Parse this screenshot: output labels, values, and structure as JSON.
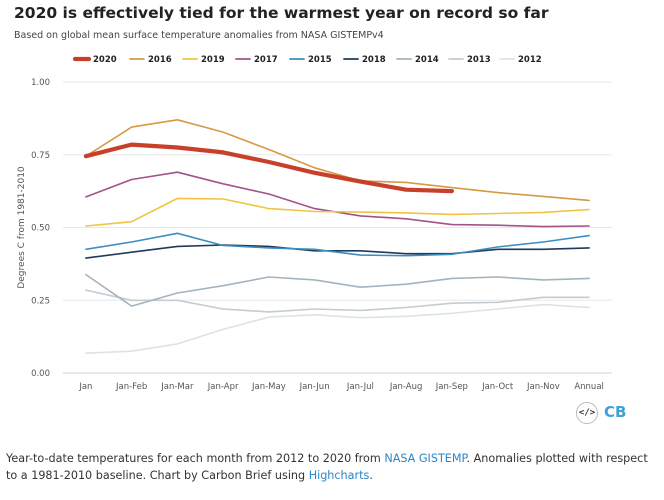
{
  "header": {
    "title": "2020 is effectively tied for the warmest year on record so far",
    "subtitle": "Based on global mean surface temperature anomalies from NASA GISTEMPv4"
  },
  "chart_data": {
    "type": "line",
    "title": "2020 is effectively tied for the warmest year on record so far",
    "subtitle": "Based on global mean surface temperature anomalies from NASA GISTEMPv4",
    "xlabel": "",
    "ylabel": "Degrees C from 1981-2010",
    "ylim": [
      0,
      1
    ],
    "yticks": [
      "0.00",
      "0.25",
      "0.50",
      "0.75",
      "1.00"
    ],
    "legend_position": "top",
    "categories": [
      "Jan",
      "Jan-Feb",
      "Jan-Mar",
      "Jan-Apr",
      "Jan-May",
      "Jan-Jun",
      "Jan-Jul",
      "Jan-Aug",
      "Jan-Sep",
      "Jan-Oct",
      "Jan-Nov",
      "Annual"
    ],
    "series": [
      {
        "name": "2020",
        "color": "#c8402a",
        "values": [
          0.745,
          0.785,
          0.775,
          0.758,
          0.725,
          0.688,
          0.658,
          0.63,
          0.625,
          null,
          null,
          null
        ]
      },
      {
        "name": "2016",
        "color": "#d69a45",
        "values": [
          0.745,
          0.845,
          0.87,
          0.828,
          0.768,
          0.705,
          0.66,
          0.655,
          0.637,
          0.62,
          0.607,
          0.593
        ]
      },
      {
        "name": "2019",
        "color": "#eec542",
        "values": [
          0.505,
          0.52,
          0.6,
          0.598,
          0.565,
          0.555,
          0.553,
          0.55,
          0.545,
          0.548,
          0.552,
          0.562
        ]
      },
      {
        "name": "2017",
        "color": "#a35389",
        "values": [
          0.605,
          0.665,
          0.69,
          0.65,
          0.615,
          0.565,
          0.54,
          0.53,
          0.51,
          0.508,
          0.503,
          0.505
        ]
      },
      {
        "name": "2015",
        "color": "#3d8fc0",
        "values": [
          0.425,
          0.45,
          0.48,
          0.438,
          0.43,
          0.425,
          0.405,
          0.403,
          0.408,
          0.433,
          0.45,
          0.472
        ]
      },
      {
        "name": "2018",
        "color": "#1f3a5a",
        "values": [
          0.395,
          0.415,
          0.435,
          0.44,
          0.435,
          0.42,
          0.42,
          0.41,
          0.41,
          0.425,
          0.425,
          0.43
        ]
      },
      {
        "name": "2014",
        "color": "#a3b4be",
        "values": [
          0.338,
          0.23,
          0.275,
          0.3,
          0.33,
          0.32,
          0.295,
          0.305,
          0.325,
          0.33,
          0.32,
          0.325
        ]
      },
      {
        "name": "2013",
        "color": "#c4ccd1",
        "values": [
          0.285,
          0.25,
          0.25,
          0.22,
          0.21,
          0.22,
          0.215,
          0.225,
          0.24,
          0.243,
          0.26,
          0.26
        ]
      },
      {
        "name": "2012",
        "color": "#dde2e5",
        "values": [
          0.068,
          0.075,
          0.1,
          0.15,
          0.192,
          0.2,
          0.19,
          0.195,
          0.205,
          0.22,
          0.235,
          0.225
        ]
      }
    ]
  },
  "branding": {
    "embed_icon": "code-icon",
    "embed_label": "</>",
    "logo_text": "CB"
  },
  "footer": {
    "text_before_link1": "Year-to-date temperatures for each month from 2012 to 2020 from ",
    "link1": "NASA GISTEMP",
    "text_between": ". Anomalies plotted with respect to a 1981-2010 baseline. Chart by Carbon Brief using ",
    "link2": "Highcharts",
    "text_after": "."
  }
}
